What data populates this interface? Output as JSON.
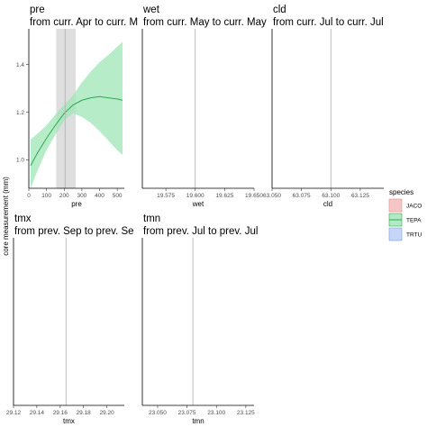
{
  "y_axis_title": "core measurement (mm)",
  "legend": {
    "title": "species",
    "items": [
      {
        "label": "JACO",
        "fill": "#f4b8b8",
        "stroke": "#e88a8a"
      },
      {
        "label": "TEPA",
        "fill": "#9fe5b6",
        "stroke": "#2eaa4a"
      },
      {
        "label": "TRTU",
        "fill": "#b7cdf5",
        "stroke": "#7a9ee0"
      }
    ]
  },
  "chart_data": [
    {
      "type": "line",
      "panel": "pre",
      "strip": [
        "pre",
        "from curr. Apr to curr. M"
      ],
      "xlabel": "pre",
      "xlim": [
        0,
        540
      ],
      "ylim": [
        0.88,
        1.55
      ],
      "xticks": [
        0,
        100,
        200,
        300,
        400,
        500
      ],
      "yticks": [
        1.0,
        1.2,
        1.4
      ],
      "ytick_labels": [
        "1.0",
        "1.2",
        "1.4"
      ],
      "vline": 205,
      "shade": [
        155,
        265
      ],
      "series": [
        {
          "species": "TEPA",
          "color": "#2eaa4a",
          "fill": "#9fe5b6",
          "x": [
            10,
            50,
            100,
            150,
            200,
            250,
            300,
            350,
            400,
            450,
            500,
            530
          ],
          "y": [
            0.975,
            1.03,
            1.09,
            1.145,
            1.195,
            1.23,
            1.25,
            1.26,
            1.265,
            1.26,
            1.255,
            1.25
          ],
          "lower": [
            0.88,
            0.955,
            1.04,
            1.105,
            1.165,
            1.195,
            1.18,
            1.155,
            1.12,
            1.08,
            1.04,
            1.02
          ],
          "upper": [
            1.085,
            1.11,
            1.145,
            1.19,
            1.23,
            1.27,
            1.325,
            1.37,
            1.41,
            1.44,
            1.475,
            1.495
          ]
        }
      ]
    },
    {
      "type": "line",
      "panel": "wet",
      "strip": [
        "wet",
        "from curr. May to curr. May"
      ],
      "xlabel": "wet",
      "xlim": [
        19.555,
        19.65
      ],
      "xticks": [
        19.575,
        19.6,
        19.625,
        19.65
      ],
      "xtick_labels": [
        "19.575",
        "19.600",
        "19.625",
        "19.650"
      ],
      "vline": 19.6,
      "series": []
    },
    {
      "type": "line",
      "panel": "cld",
      "strip": [
        "cld",
        "from curr. Jul to curr. Jul"
      ],
      "xlabel": "cld",
      "xlim": [
        63.05,
        63.145
      ],
      "xticks": [
        63.05,
        63.075,
        63.1,
        63.125
      ],
      "xtick_labels": [
        "63.050",
        "63.075",
        "63.100",
        "63.125"
      ],
      "vline": 63.1,
      "series": []
    },
    {
      "type": "line",
      "panel": "tmx",
      "strip": [
        "tmx",
        "from prev. Sep to prev. Se"
      ],
      "xlabel": "tmx",
      "xlim": [
        29.12,
        29.215
      ],
      "xticks": [
        29.12,
        29.14,
        29.16,
        29.18,
        29.2
      ],
      "xtick_labels": [
        "29.12",
        "29.14",
        "29.16",
        "29.18",
        "29.20"
      ],
      "vline": 29.165,
      "series": []
    },
    {
      "type": "line",
      "panel": "tmn",
      "strip": [
        "tmn",
        "from prev. Jul to prev. Jul"
      ],
      "xlabel": "tmn",
      "xlim": [
        23.037,
        23.132
      ],
      "xticks": [
        23.05,
        23.075,
        23.1,
        23.125
      ],
      "xtick_labels": [
        "23.050",
        "23.075",
        "23.100",
        "23.125"
      ],
      "vline": 23.08,
      "series": []
    }
  ]
}
